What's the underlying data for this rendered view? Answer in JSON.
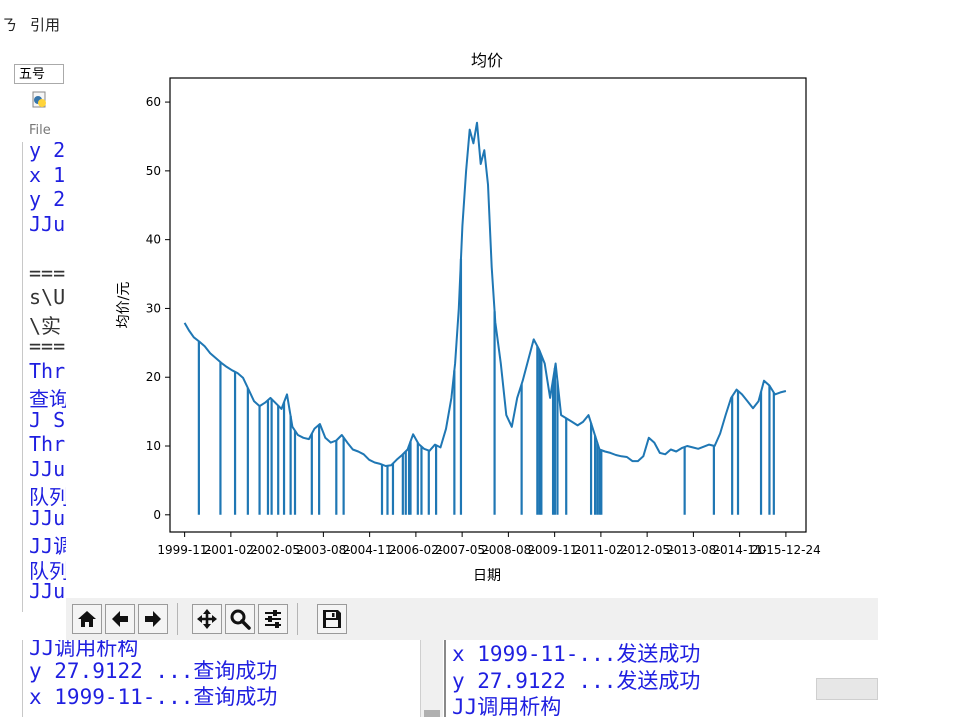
{
  "background_editor": {
    "menu": [
      "ㄋ",
      "引用"
    ],
    "font_size": "五号",
    "file_label": "File",
    "editor_lines": [
      {
        "text": "y 2",
        "color": "#1f1fe0"
      },
      {
        "text": "x 1",
        "color": "#1f1fe0"
      },
      {
        "text": "y 2",
        "color": "#1f1fe0"
      },
      {
        "text": "JJu",
        "color": "#1f1fe0"
      },
      {
        "text": "",
        "color": "#333333"
      },
      {
        "text": "===",
        "color": "#333333"
      },
      {
        "text": "s\\U",
        "color": "#333333"
      },
      {
        "text": "\\实",
        "color": "#333333"
      },
      {
        "text": "===",
        "color": "#333333"
      },
      {
        "text": "Thr",
        "color": "#1f1fe0"
      },
      {
        "text": "查询",
        "color": "#1f1fe0"
      },
      {
        "text": "J S",
        "color": "#1f1fe0"
      },
      {
        "text": "Thr",
        "color": "#1f1fe0"
      },
      {
        "text": "JJu",
        "color": "#1f1fe0"
      },
      {
        "text": "队列",
        "color": "#1f1fe0"
      },
      {
        "text": "JJu",
        "color": "#1f1fe0"
      },
      {
        "text": "JJ调",
        "color": "#1f1fe0"
      },
      {
        "text": "队列",
        "color": "#1f1fe0"
      },
      {
        "text": "JJu",
        "color": "#1f1fe0"
      }
    ]
  },
  "console_left": {
    "lines": [
      "JJ调用析构",
      "y 27.9122 ...查询成功",
      "x 1999-11-...查询成功"
    ]
  },
  "console_right": {
    "lines": [
      "x 1999-11-...发送成功",
      "y 27.9122 ...发送成功",
      "JJ调用析构"
    ]
  },
  "toolbar": {
    "buttons": [
      {
        "name": "home-button",
        "icon": "home-icon"
      },
      {
        "name": "back-button",
        "icon": "arrow-left-icon"
      },
      {
        "name": "forward-button",
        "icon": "arrow-right-icon"
      },
      {
        "name": "pan-button",
        "icon": "move-icon"
      },
      {
        "name": "zoom-button",
        "icon": "magnifier-icon"
      },
      {
        "name": "configure-subplots-button",
        "icon": "sliders-icon"
      },
      {
        "name": "save-button",
        "icon": "floppy-disk-icon"
      }
    ]
  },
  "chart_data": {
    "type": "line",
    "title": "均价",
    "xlabel": "日期",
    "ylabel": "均价/元",
    "ylim": [
      -2.5,
      63.5
    ],
    "yticks": [
      0,
      10,
      20,
      30,
      40,
      50,
      60
    ],
    "xlim": [
      -400,
      17000
    ],
    "xtick_labels": [
      "1999-11-",
      "2001-02-",
      "2002-05-",
      "2003-08-",
      "2004-11-",
      "2006-02-",
      "2007-05-",
      "2008-08-",
      "2009-11-",
      "2011-02-",
      "2012-05-",
      "2013-08-",
      "2014-11-",
      "2015-12-24"
    ],
    "grid": false,
    "line_color": "#1f77b4",
    "series": [
      {
        "x": [
          0,
          120,
          250,
          400,
          550,
          700,
          850,
          1000,
          1150,
          1300,
          1450,
          1600,
          1750,
          1900,
          2050,
          2200,
          2350,
          2500,
          2650,
          2800,
          2950,
          3100,
          3250,
          3400,
          3550,
          3700,
          3850,
          4000,
          4150,
          4300,
          4450,
          4600,
          4750,
          4900,
          5050,
          5200,
          5350,
          5500,
          5650,
          5800,
          5950,
          6100,
          6250,
          6400,
          6550,
          6700,
          6850,
          7000,
          7150,
          7300,
          7400,
          7500,
          7600,
          7700,
          7800,
          7900,
          8000,
          8100,
          8200,
          8300,
          8400,
          8500,
          8650,
          8800,
          8950,
          9100,
          9250,
          9400,
          9550,
          9700,
          9850,
          10000,
          10150,
          10300,
          10450,
          10600,
          10750,
          10900,
          11050,
          11200,
          11350,
          11500,
          11650,
          11800,
          11950,
          12100,
          12250,
          12400,
          12550,
          12700,
          12850,
          13000,
          13150,
          13300,
          13450,
          13600,
          13750,
          13900,
          14050,
          14200,
          14350,
          14500,
          14650,
          14800,
          14950,
          15100,
          15250,
          15400,
          15550,
          15700,
          15850,
          16000,
          16150,
          16300,
          16450
        ],
        "y": [
          27.9,
          26.8,
          25.8,
          25.2,
          24.5,
          23.5,
          22.8,
          22.1,
          21.5,
          21.0,
          20.6,
          19.9,
          18.2,
          16.5,
          15.8,
          16.3,
          17.0,
          16.2,
          15.4,
          17.5,
          12.8,
          11.6,
          11.2,
          11.0,
          12.5,
          13.2,
          11.2,
          10.5,
          10.8,
          11.6,
          10.5,
          9.5,
          9.2,
          8.8,
          8.0,
          7.6,
          7.4,
          7.1,
          7.2,
          8.0,
          8.7,
          9.5,
          11.7,
          10.3,
          9.6,
          9.3,
          10.2,
          9.8,
          12.5,
          17.0,
          22.0,
          30.0,
          42.0,
          50.0,
          56.0,
          54.0,
          57.0,
          51.0,
          53.0,
          48.0,
          36.0,
          28.0,
          22.0,
          14.5,
          12.8,
          17.0,
          19.5,
          22.5,
          25.5,
          24.0,
          22.0,
          17.0,
          22.0,
          14.5,
          14.0,
          13.5,
          13.0,
          13.5,
          14.5,
          12.0,
          9.5,
          9.2,
          9.0,
          8.7,
          8.5,
          8.4,
          7.8,
          7.8,
          8.5,
          11.2,
          10.5,
          9.0,
          8.8,
          9.5,
          9.2,
          9.7,
          10.0,
          9.8,
          9.6,
          9.9,
          10.2,
          10.0,
          11.8,
          14.5,
          17.0,
          18.2,
          17.5,
          16.5,
          15.5,
          16.5,
          19.5,
          18.8,
          17.5,
          17.8,
          18.0
        ]
      }
    ],
    "drop_to_zero_x": [
      390,
      980,
      1380,
      1730,
      2050,
      2280,
      2380,
      2560,
      2720,
      2900,
      3020,
      3480,
      3680,
      4150,
      4350,
      5400,
      5550,
      5700,
      5970,
      6050,
      6140,
      6180,
      6380,
      6480,
      6680,
      6880,
      7380,
      7560,
      8480,
      9220,
      9650,
      9710,
      9760,
      10080,
      10130,
      10200,
      10440,
      11120,
      11230,
      11290,
      11350,
      11400,
      13680,
      14480,
      14980,
      15140,
      15770,
      16000,
      16120
    ]
  }
}
